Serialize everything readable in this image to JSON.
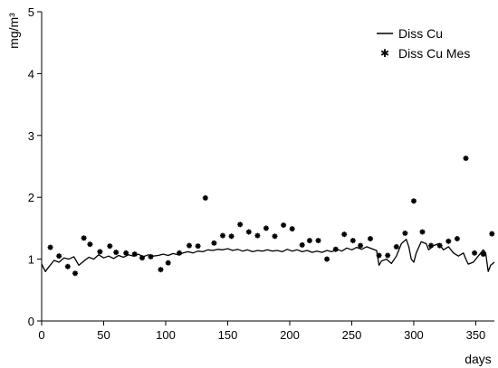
{
  "chart_data": {
    "type": "line",
    "ylabel": "mg/m³",
    "xlabel": "days",
    "xlim": [
      0,
      365
    ],
    "ylim": [
      0,
      5
    ],
    "xticks": [
      0,
      50,
      100,
      150,
      200,
      250,
      300,
      350
    ],
    "yticks": [
      0,
      1,
      2,
      3,
      4,
      5
    ],
    "grid": false,
    "legend_position": "top-right",
    "series": [
      {
        "name": "Diss Cu",
        "style": "line",
        "color": "#000000",
        "x": [
          0,
          3,
          6,
          10,
          14,
          18,
          22,
          26,
          30,
          34,
          38,
          42,
          46,
          50,
          54,
          58,
          62,
          66,
          70,
          74,
          78,
          82,
          86,
          90,
          94,
          98,
          102,
          106,
          110,
          114,
          118,
          122,
          126,
          130,
          134,
          138,
          142,
          146,
          150,
          154,
          158,
          162,
          166,
          170,
          174,
          178,
          182,
          186,
          190,
          194,
          198,
          202,
          206,
          210,
          214,
          218,
          222,
          226,
          230,
          234,
          238,
          242,
          246,
          250,
          254,
          258,
          262,
          266,
          270,
          272,
          274,
          278,
          282,
          286,
          290,
          294,
          296,
          298,
          300,
          302,
          306,
          310,
          312,
          316,
          320,
          324,
          328,
          332,
          336,
          340,
          342,
          344,
          348,
          352,
          356,
          358,
          360,
          362,
          365
        ],
        "y": [
          0.92,
          0.8,
          0.88,
          0.98,
          0.95,
          1.02,
          1.0,
          1.04,
          0.9,
          0.97,
          1.03,
          1.0,
          1.07,
          1.02,
          1.05,
          1.01,
          1.06,
          1.03,
          1.07,
          1.05,
          1.08,
          1.04,
          1.07,
          1.05,
          1.06,
          1.08,
          1.06,
          1.09,
          1.07,
          1.1,
          1.12,
          1.1,
          1.13,
          1.12,
          1.15,
          1.14,
          1.16,
          1.15,
          1.17,
          1.14,
          1.16,
          1.13,
          1.15,
          1.12,
          1.14,
          1.13,
          1.15,
          1.13,
          1.14,
          1.12,
          1.16,
          1.13,
          1.15,
          1.12,
          1.14,
          1.11,
          1.13,
          1.11,
          1.14,
          1.12,
          1.16,
          1.13,
          1.18,
          1.15,
          1.19,
          1.16,
          1.2,
          1.17,
          1.14,
          0.9,
          0.97,
          1.0,
          0.93,
          1.05,
          1.25,
          1.32,
          1.2,
          1.0,
          0.95,
          1.1,
          1.28,
          1.25,
          1.15,
          1.22,
          1.25,
          1.15,
          1.2,
          1.1,
          1.05,
          1.1,
          1.0,
          0.92,
          0.95,
          1.05,
          1.15,
          1.1,
          0.8,
          0.9,
          0.95
        ]
      },
      {
        "name": "Diss Cu Mes",
        "style": "markers",
        "color": "#000000",
        "x": [
          7,
          14,
          21,
          27,
          34,
          39,
          47,
          55,
          60,
          68,
          75,
          81,
          88,
          96,
          102,
          111,
          119,
          126,
          132,
          139,
          146,
          153,
          160,
          167,
          174,
          181,
          188,
          195,
          202,
          210,
          216,
          223,
          230,
          237,
          244,
          251,
          257,
          265,
          272,
          279,
          286,
          293,
          300,
          307,
          314,
          321,
          328,
          335,
          342,
          349,
          356,
          363
        ],
        "y": [
          1.19,
          1.05,
          0.88,
          0.77,
          1.34,
          1.24,
          1.12,
          1.21,
          1.11,
          1.1,
          1.08,
          1.02,
          1.04,
          0.83,
          0.94,
          1.1,
          1.22,
          1.21,
          1.99,
          1.26,
          1.38,
          1.37,
          1.56,
          1.44,
          1.38,
          1.5,
          1.37,
          1.55,
          1.49,
          1.23,
          1.3,
          1.3,
          1.0,
          1.16,
          1.4,
          1.3,
          1.22,
          1.33,
          1.06,
          1.06,
          1.2,
          1.42,
          1.94,
          1.44,
          1.22,
          1.22,
          1.29,
          1.33,
          2.63,
          1.1,
          1.08,
          1.41
        ]
      }
    ]
  }
}
